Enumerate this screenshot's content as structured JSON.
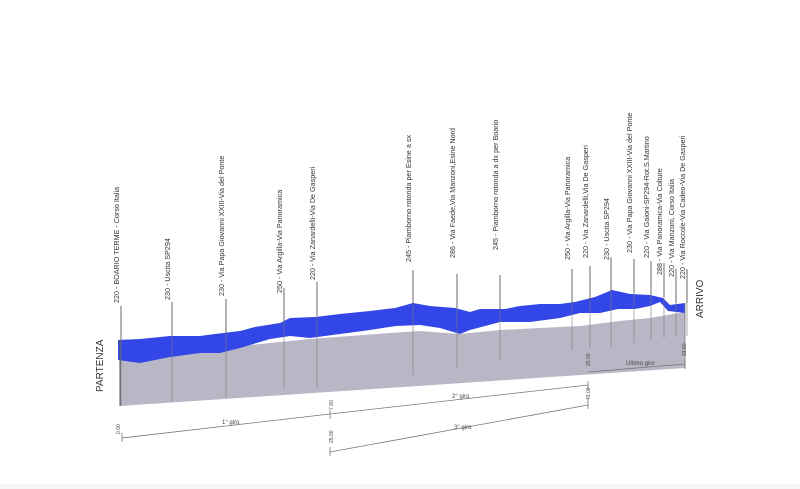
{
  "profile": {
    "start_label": "PARTENZA",
    "end_label": "ARRIVO",
    "waypoints": [
      "220 - BOARIO TERME - Corso Italia",
      "230 - Uscita SP294",
      "230 - Via Papa Giovanni XXIII-Via del Ponte",
      "250 - Via Argilla-Via Panoramica",
      "220 - Via Zanardelli-Via De Gasperi",
      "245 - Piamborno rotonda per Esine a sx",
      "286 - Via Faede,Via Manzoni,Esine Nord",
      "245 - Piamborno rotonda a dx per Boario",
      "250 - Via Argilla-Via Panoramica",
      "220 - Via Zanardelli,Via De Gasperi",
      "230 - Uscita SP294",
      "230 - Via Papa Giovanni XXIII-Via del Ponte",
      "220 - Via Gaioni-SP294-Rot.S.Martino",
      "288 - Via Panoramica-Via Colture",
      "220 - Via Manzoni, Corso Italia",
      "220 - Via Roccole-Via Cadeo-Via De Gasperi"
    ],
    "laps": {
      "first": "1° giro",
      "second": "2° giro",
      "third": "3° giro",
      "last": "Ultimo giro"
    },
    "km_marks": [
      "0.00",
      "7.90",
      "25.00",
      "25.00",
      "43.00",
      "33.60"
    ]
  },
  "colors": {
    "profile_top": "#3346e8",
    "profile_side": "#b9b6c5",
    "line": "#666666",
    "text": "#333333"
  }
}
